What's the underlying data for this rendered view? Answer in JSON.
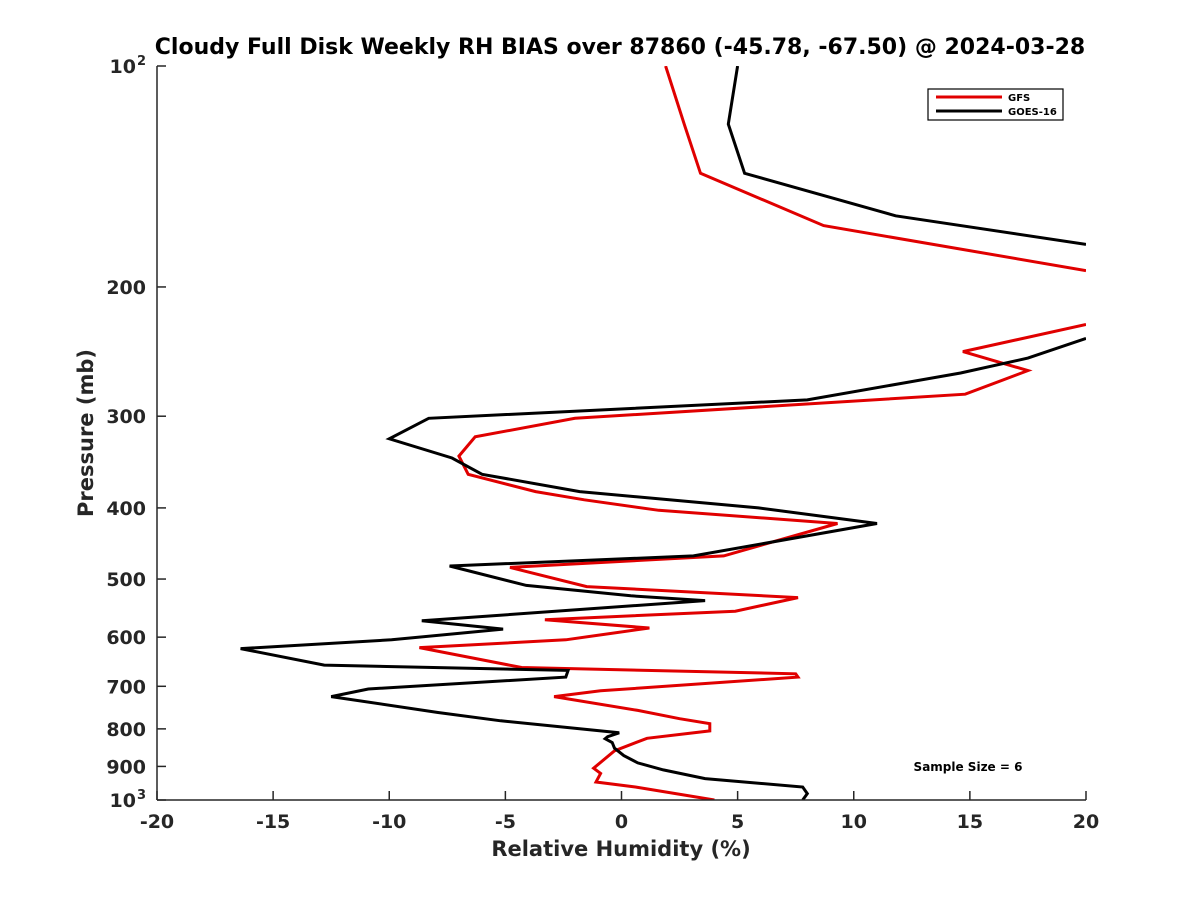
{
  "chart_data": {
    "type": "line",
    "title": "Cloudy Full Disk Weekly RH BIAS over 87860 (-45.78, -67.50) @ 2024-03-28",
    "xlabel": "Relative Humidity (%)",
    "ylabel": "Pressure (mb)",
    "xlim": [
      -20,
      20
    ],
    "ylim": [
      100,
      1000
    ],
    "y_scale": "log",
    "y_reversed": true,
    "grid": false,
    "legend_position": "top-right",
    "x_ticks": [
      "-20",
      "-15",
      "-10",
      "-5",
      "0",
      "5",
      "10",
      "15",
      "20"
    ],
    "y_ticks": [
      {
        "base": "10",
        "exp": "2"
      },
      {
        "base": "200",
        "exp": ""
      },
      {
        "base": "300",
        "exp": ""
      },
      {
        "base": "400",
        "exp": ""
      },
      {
        "base": "500",
        "exp": ""
      },
      {
        "base": "600",
        "exp": ""
      },
      {
        "base": "700",
        "exp": ""
      },
      {
        "base": "800",
        "exp": ""
      },
      {
        "base": "900",
        "exp": ""
      },
      {
        "base": "10",
        "exp": "3"
      }
    ],
    "annotation": "Sample Size = 6",
    "series": [
      {
        "name": "GFS",
        "color": "#e00000",
        "points": [
          [
            1.9,
            100
          ],
          [
            2.7,
            120
          ],
          [
            3.4,
            140
          ],
          [
            8.7,
            165
          ],
          [
            20,
            190
          ],
          null,
          [
            20,
            225
          ],
          [
            14.7,
            245
          ],
          [
            17.5,
            260
          ],
          [
            14.8,
            280
          ],
          [
            -2.0,
            302
          ],
          [
            -6.3,
            320
          ],
          [
            -7.0,
            340
          ],
          [
            -6.6,
            360
          ],
          [
            -3.7,
            380
          ],
          [
            -1.6,
            390
          ],
          [
            1.6,
            403
          ],
          [
            9.3,
            420
          ],
          [
            4.4,
            465
          ],
          [
            -4.8,
            482
          ],
          [
            -1.5,
            512
          ],
          [
            7.6,
            530
          ],
          [
            4.9,
            553
          ],
          [
            -3.3,
            568
          ],
          [
            1.2,
            583
          ],
          [
            -2.4,
            605
          ],
          [
            -8.7,
            620
          ],
          [
            -4.3,
            660
          ],
          [
            7.5,
            673
          ],
          [
            7.6,
            680
          ],
          [
            -0.9,
            710
          ],
          [
            -2.9,
            723
          ],
          [
            0.7,
            755
          ],
          [
            2.5,
            775
          ],
          [
            3.8,
            787
          ],
          [
            3.8,
            805
          ],
          [
            1.1,
            824
          ],
          [
            -0.3,
            857
          ],
          [
            -1.2,
            905
          ],
          [
            -0.9,
            920
          ],
          [
            -1.1,
            945
          ],
          [
            0.6,
            960
          ],
          [
            4.0,
            1000
          ]
        ]
      },
      {
        "name": "GOES-16",
        "color": "#000000",
        "points": [
          [
            5.0,
            100
          ],
          [
            4.6,
            120
          ],
          [
            5.3,
            140
          ],
          [
            11.8,
            160
          ],
          [
            20,
            175
          ],
          null,
          [
            20,
            235
          ],
          [
            17.5,
            250
          ],
          [
            14.6,
            262
          ],
          [
            8.0,
            285
          ],
          [
            -8.3,
            302
          ],
          [
            -10.0,
            322
          ],
          [
            -7.3,
            342
          ],
          [
            -6.0,
            360
          ],
          [
            -1.8,
            380
          ],
          [
            5.9,
            400
          ],
          [
            11.0,
            420
          ],
          [
            3.1,
            465
          ],
          [
            -7.4,
            480
          ],
          [
            -4.1,
            510
          ],
          [
            0.4,
            527
          ],
          [
            3.6,
            535
          ],
          [
            -8.6,
            570
          ],
          [
            -5.1,
            585
          ],
          [
            -9.9,
            605
          ],
          [
            -16.4,
            622
          ],
          [
            -12.8,
            655
          ],
          [
            -2.3,
            666
          ],
          [
            -2.4,
            680
          ],
          [
            -10.9,
            706
          ],
          [
            -12.5,
            723
          ],
          [
            -7.9,
            760
          ],
          [
            -5.2,
            780
          ],
          [
            -0.1,
            810
          ],
          [
            -0.6,
            820
          ],
          [
            -0.7,
            825
          ],
          [
            -0.4,
            835
          ],
          [
            -0.3,
            850
          ],
          [
            0.1,
            870
          ],
          [
            0.7,
            890
          ],
          [
            1.8,
            910
          ],
          [
            3.6,
            935
          ],
          [
            7.8,
            960
          ],
          [
            8.0,
            980
          ],
          [
            7.8,
            1000
          ]
        ]
      }
    ]
  }
}
